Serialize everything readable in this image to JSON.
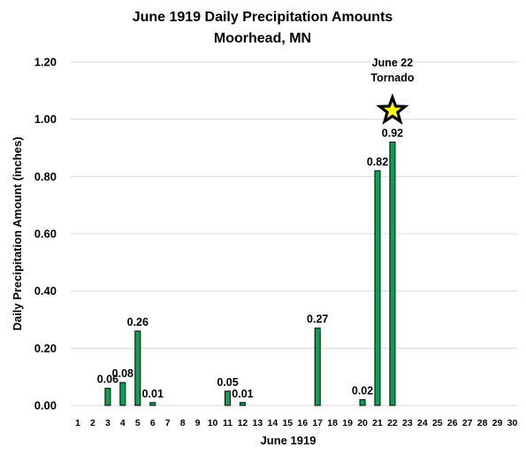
{
  "chart_data": {
    "type": "bar",
    "title": "June 1919 Daily Precipitation Amounts",
    "subtitle": "Moorhead, MN",
    "xlabel": "June 1919",
    "ylabel": "Daily Precipitation Amount (inches)",
    "ylim": [
      0,
      1.2
    ],
    "yticks": [
      "0.00",
      "0.20",
      "0.40",
      "0.60",
      "0.80",
      "1.00",
      "1.20"
    ],
    "grid": true,
    "bar_color": "#00a651",
    "categories": [
      "1",
      "2",
      "3",
      "4",
      "5",
      "6",
      "7",
      "8",
      "9",
      "10",
      "11",
      "12",
      "13",
      "14",
      "15",
      "16",
      "17",
      "18",
      "19",
      "20",
      "21",
      "22",
      "23",
      "24",
      "25",
      "26",
      "27",
      "28",
      "29",
      "30"
    ],
    "values": [
      0,
      0,
      0.06,
      0.08,
      0.26,
      0.01,
      0,
      0,
      0,
      0,
      0.05,
      0.01,
      0,
      0,
      0,
      0,
      0.27,
      0,
      0,
      0.02,
      0.82,
      0.92,
      0,
      0,
      0,
      0,
      0,
      0,
      0,
      0
    ],
    "data_labels": [
      "",
      "",
      "0.06",
      "0.08",
      "0.26",
      "0.01",
      "",
      "",
      "",
      "",
      "0.05",
      "0.01",
      "",
      "",
      "",
      "",
      "0.27",
      "",
      "",
      "0.02",
      "0.82",
      "0.92",
      "",
      "",
      "",
      "",
      "",
      "",
      "",
      ""
    ],
    "annotation": {
      "category": "22",
      "value": 1.03,
      "lines": [
        "June 22",
        "Tornado"
      ],
      "icon": "star-icon",
      "star_fill": "#ffff00",
      "star_stroke": "#000000"
    }
  }
}
